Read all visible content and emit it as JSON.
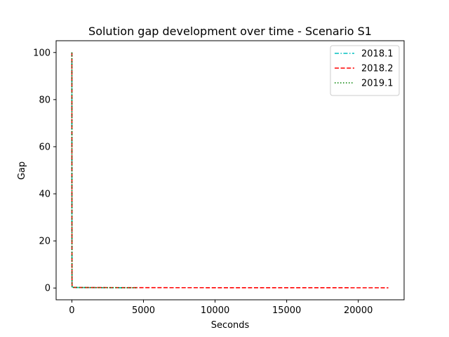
{
  "chart_data": {
    "type": "line",
    "title": "Solution gap development over time - Scenario S1",
    "xlabel": "Seconds",
    "ylabel": "Gap",
    "xlim": [
      -1100,
      23200
    ],
    "ylim": [
      -5,
      105
    ],
    "xticks": [
      0,
      5000,
      10000,
      15000,
      20000
    ],
    "yticks": [
      0,
      20,
      40,
      60,
      80,
      100
    ],
    "grid": false,
    "legend_position": "top-right",
    "series": [
      {
        "name": "2018.1",
        "color": "#00bfbf",
        "dash": "dashdot",
        "points": [
          [
            0,
            100
          ],
          [
            2,
            55
          ],
          [
            5,
            20
          ],
          [
            10,
            0.5
          ],
          [
            50,
            0.3
          ],
          [
            500,
            0.2
          ],
          [
            1500,
            0.15
          ],
          [
            4500,
            0.1
          ]
        ]
      },
      {
        "name": "2018.2",
        "color": "#ff0000",
        "dash": "dashed",
        "points": [
          [
            0,
            100
          ],
          [
            3,
            40
          ],
          [
            8,
            5
          ],
          [
            15,
            0.4
          ],
          [
            100,
            0.25
          ],
          [
            1000,
            0.2
          ],
          [
            5000,
            0.15
          ],
          [
            22100,
            0.1
          ]
        ]
      },
      {
        "name": "2019.1",
        "color": "#008000",
        "dash": "dotted",
        "points": [
          [
            0,
            100
          ],
          [
            4,
            30
          ],
          [
            10,
            1
          ],
          [
            20,
            0.3
          ],
          [
            500,
            0.2
          ],
          [
            3000,
            0.15
          ],
          [
            4600,
            0.1
          ]
        ]
      }
    ]
  }
}
